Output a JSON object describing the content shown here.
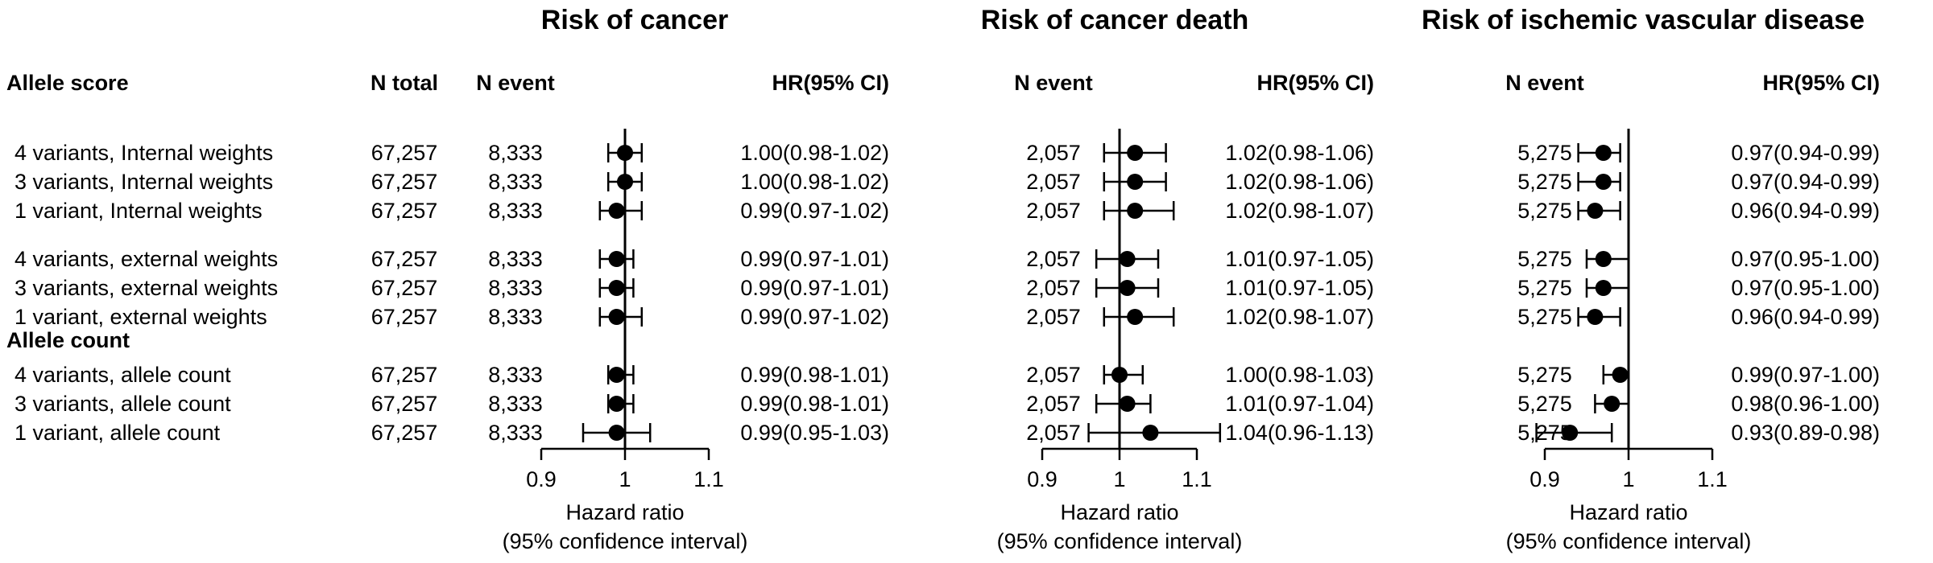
{
  "headers": {
    "allele_score": "Allele score",
    "n_total": "N total",
    "n_event": "N event",
    "hr": "HR(95% CI)"
  },
  "groups": [
    {
      "label": "",
      "rows": [
        "4 variants, Internal weights",
        "3 variants, Internal weights",
        "1 variant, Internal weights"
      ]
    },
    {
      "label": "",
      "rows": [
        "4 variants, external weights",
        "3 variants, external weights",
        "1 variant, external weights"
      ]
    },
    {
      "label": "Allele count",
      "rows": [
        "4 variants, allele count",
        "3 variants, allele count",
        "1 variant, allele count"
      ]
    }
  ],
  "n_total": [
    "67,257",
    "67,257",
    "67,257",
    "67,257",
    "67,257",
    "67,257",
    "67,257",
    "67,257",
    "67,257"
  ],
  "axis": {
    "ticks": [
      "0.9",
      "1",
      "1.1"
    ],
    "xlim": [
      0.9,
      1.1
    ],
    "reference_line": 1,
    "xlabel": "Hazard ratio",
    "xlabel2": "(95% confidence interval)"
  },
  "chart_data": [
    {
      "type": "forest",
      "title": "Risk of cancer",
      "n_event": [
        "8,333",
        "8,333",
        "8,333",
        "8,333",
        "8,333",
        "8,333",
        "8,333",
        "8,333",
        "8,333"
      ],
      "hr_text": [
        "1.00(0.98-1.02)",
        "1.00(0.98-1.02)",
        "0.99(0.97-1.02)",
        "0.99(0.97-1.01)",
        "0.99(0.97-1.01)",
        "0.99(0.97-1.02)",
        "0.99(0.98-1.01)",
        "0.99(0.98-1.01)",
        "0.99(0.95-1.03)"
      ],
      "hr": [
        1.0,
        1.0,
        0.99,
        0.99,
        0.99,
        0.99,
        0.99,
        0.99,
        0.99
      ],
      "lower": [
        0.98,
        0.98,
        0.97,
        0.97,
        0.97,
        0.97,
        0.98,
        0.98,
        0.95
      ],
      "upper": [
        1.02,
        1.02,
        1.02,
        1.01,
        1.01,
        1.02,
        1.01,
        1.01,
        1.03
      ]
    },
    {
      "type": "forest",
      "title": "Risk of cancer death",
      "n_event": [
        "2,057",
        "2,057",
        "2,057",
        "2,057",
        "2,057",
        "2,057",
        "2,057",
        "2,057",
        "2,057"
      ],
      "hr_text": [
        "1.02(0.98-1.06)",
        "1.02(0.98-1.06)",
        "1.02(0.98-1.07)",
        "1.01(0.97-1.05)",
        "1.01(0.97-1.05)",
        "1.02(0.98-1.07)",
        "1.00(0.98-1.03)",
        "1.01(0.97-1.04)",
        "1.04(0.96-1.13)"
      ],
      "hr": [
        1.02,
        1.02,
        1.02,
        1.01,
        1.01,
        1.02,
        1.0,
        1.01,
        1.04
      ],
      "lower": [
        0.98,
        0.98,
        0.98,
        0.97,
        0.97,
        0.98,
        0.98,
        0.97,
        0.96
      ],
      "upper": [
        1.06,
        1.06,
        1.07,
        1.05,
        1.05,
        1.07,
        1.03,
        1.04,
        1.13
      ]
    },
    {
      "type": "forest",
      "title": "Risk of ischemic vascular disease",
      "n_event": [
        "5,275",
        "5,275",
        "5,275",
        "5,275",
        "5,275",
        "5,275",
        "5,275",
        "5,275",
        "5,275"
      ],
      "hr_text": [
        "0.97(0.94-0.99)",
        "0.97(0.94-0.99)",
        "0.96(0.94-0.99)",
        "0.97(0.95-1.00)",
        "0.97(0.95-1.00)",
        "0.96(0.94-0.99)",
        "0.99(0.97-1.00)",
        "0.98(0.96-1.00)",
        "0.93(0.89-0.98)"
      ],
      "hr": [
        0.97,
        0.97,
        0.96,
        0.97,
        0.97,
        0.96,
        0.99,
        0.98,
        0.93
      ],
      "lower": [
        0.94,
        0.94,
        0.94,
        0.95,
        0.95,
        0.94,
        0.97,
        0.96,
        0.89
      ],
      "upper": [
        0.99,
        0.99,
        0.99,
        1.0,
        1.0,
        0.99,
        1.0,
        1.0,
        0.98
      ]
    }
  ]
}
